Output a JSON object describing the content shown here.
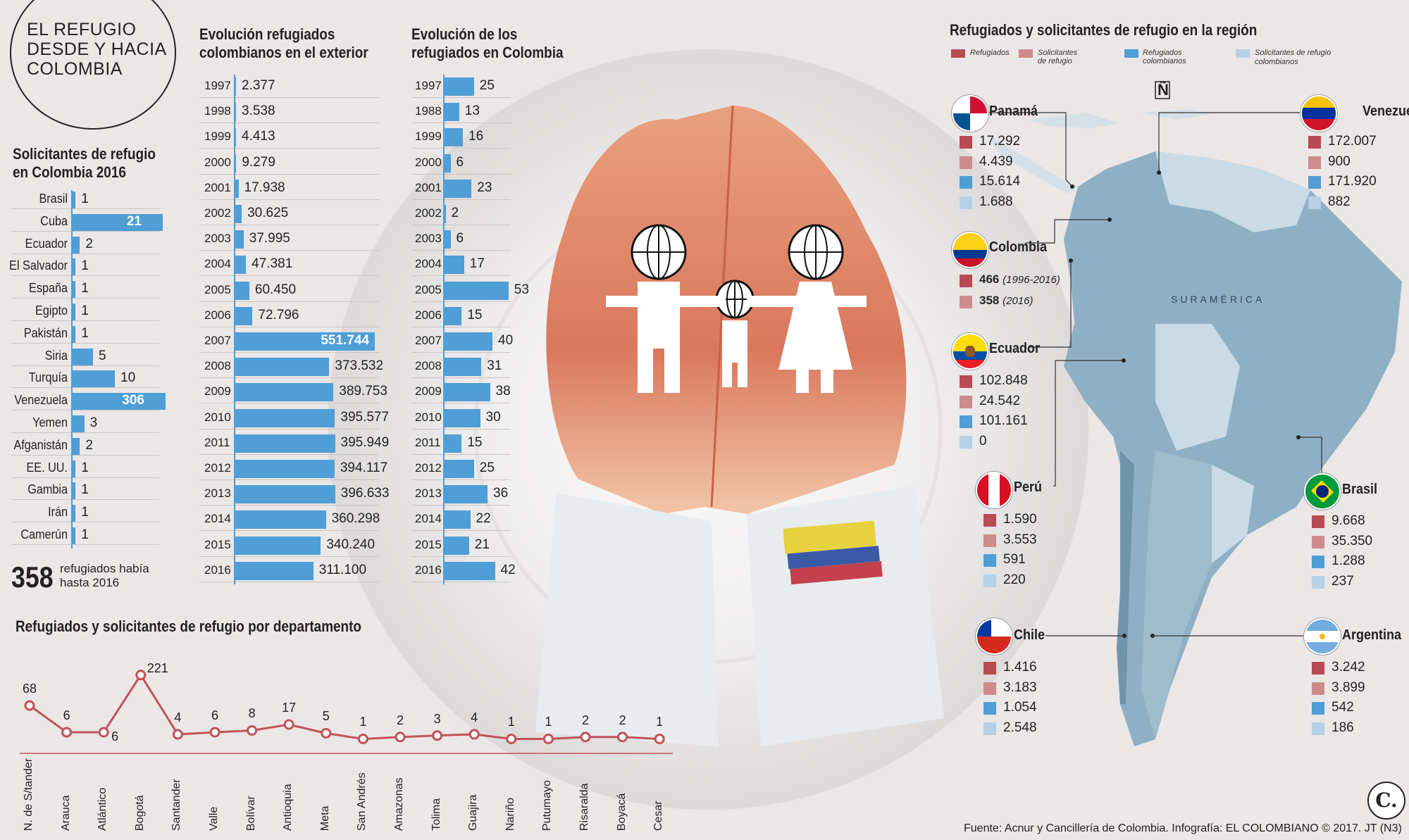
{
  "title_lines": [
    "EL REFUGIO",
    "DESDE Y HACIA",
    "COLOMBIA"
  ],
  "colors": {
    "blue": "#4f9ed6",
    "refugiados": "#b84a55",
    "solicitantes": "#cf8a8c",
    "ref_col": "#4f9ed6",
    "sol_col": "#b7d0e6",
    "line": "#c2525a",
    "map": "#8fb0c4",
    "map_light": "#c9dbe6"
  },
  "solicitantes": {
    "title_lines": [
      "Solicitantes de refugio",
      "en Colombia 2016"
    ],
    "items": [
      {
        "label": "Brasil",
        "value": "1"
      },
      {
        "label": "Cuba",
        "value": "21"
      },
      {
        "label": "Ecuador",
        "value": "2"
      },
      {
        "label": "El Salvador",
        "value": "1"
      },
      {
        "label": "España",
        "value": "1"
      },
      {
        "label": "Egipto",
        "value": "1"
      },
      {
        "label": "Pakistán",
        "value": "1"
      },
      {
        "label": "Siria",
        "value": "5"
      },
      {
        "label": "Turquía",
        "value": "10"
      },
      {
        "label": "Venezuela",
        "value": "306"
      },
      {
        "label": "Yemen",
        "value": "3"
      },
      {
        "label": "Afganistán",
        "value": "2"
      },
      {
        "label": "EE. UU.",
        "value": "1"
      },
      {
        "label": "Gambia",
        "value": "1"
      },
      {
        "label": "Irán",
        "value": "1"
      },
      {
        "label": "Camerún",
        "value": "1"
      }
    ],
    "total_number": "358",
    "total_text_lines": [
      "refugiados había",
      "hasta 2016"
    ]
  },
  "exterior": {
    "title_lines": [
      "Evolución refugiados",
      "colombianos en el exterior"
    ],
    "items": [
      {
        "year": "1997",
        "label": "2.377",
        "v": 2377
      },
      {
        "year": "1998",
        "label": "3.538",
        "v": 3538
      },
      {
        "year": "1999",
        "label": "4.413",
        "v": 4413
      },
      {
        "year": "2000",
        "label": "9.279",
        "v": 9279
      },
      {
        "year": "2001",
        "label": "17.938",
        "v": 17938
      },
      {
        "year": "2002",
        "label": "30.625",
        "v": 30625
      },
      {
        "year": "2003",
        "label": "37.995",
        "v": 37995
      },
      {
        "year": "2004",
        "label": "47.381",
        "v": 47381
      },
      {
        "year": "2005",
        "label": "60.450",
        "v": 60450
      },
      {
        "year": "2006",
        "label": "72.796",
        "v": 72796
      },
      {
        "year": "2007",
        "label": "551.744",
        "v": 551744
      },
      {
        "year": "2008",
        "label": "373.532",
        "v": 373532
      },
      {
        "year": "2009",
        "label": "389.753",
        "v": 389753
      },
      {
        "year": "2010",
        "label": "395.577",
        "v": 395577
      },
      {
        "year": "2011",
        "label": "395.949",
        "v": 395949
      },
      {
        "year": "2012",
        "label": "394.117",
        "v": 394117
      },
      {
        "year": "2013",
        "label": "396.633",
        "v": 396633
      },
      {
        "year": "2014",
        "label": "360.298",
        "v": 360298
      },
      {
        "year": "2015",
        "label": "340.240",
        "v": 340240
      },
      {
        "year": "2016",
        "label": "311.100",
        "v": 311100
      }
    ]
  },
  "colombia": {
    "title_lines": [
      "Evolución de los",
      "refugiados en Colombia"
    ],
    "items": [
      {
        "year": "1997",
        "label": "25",
        "v": 25
      },
      {
        "year": "1988",
        "label": "13",
        "v": 13
      },
      {
        "year": "1999",
        "label": "16",
        "v": 16
      },
      {
        "year": "2000",
        "label": "6",
        "v": 6
      },
      {
        "year": "2001",
        "label": "23",
        "v": 23
      },
      {
        "year": "2002",
        "label": "2",
        "v": 2
      },
      {
        "year": "2003",
        "label": "6",
        "v": 6
      },
      {
        "year": "2004",
        "label": "17",
        "v": 17
      },
      {
        "year": "2005",
        "label": "53",
        "v": 53
      },
      {
        "year": "2006",
        "label": "15",
        "v": 15
      },
      {
        "year": "2007",
        "label": "40",
        "v": 40
      },
      {
        "year": "2008",
        "label": "31",
        "v": 31
      },
      {
        "year": "2009",
        "label": "38",
        "v": 38
      },
      {
        "year": "2010",
        "label": "30",
        "v": 30
      },
      {
        "year": "2011",
        "label": "15",
        "v": 15
      },
      {
        "year": "2012",
        "label": "25",
        "v": 25
      },
      {
        "year": "2013",
        "label": "36",
        "v": 36
      },
      {
        "year": "2014",
        "label": "22",
        "v": 22
      },
      {
        "year": "2015",
        "label": "21",
        "v": 21
      },
      {
        "year": "2016",
        "label": "42",
        "v": 42
      }
    ]
  },
  "departamentos": {
    "title": "Refugiados y solicitantes de refugio por departamento",
    "items": [
      {
        "name": "N. de S/tander",
        "value": "68"
      },
      {
        "name": "Arauca",
        "value": "6"
      },
      {
        "name": "Atlántico",
        "value": "6"
      },
      {
        "name": "Bogotá",
        "value": "221"
      },
      {
        "name": "Santander",
        "value": "4"
      },
      {
        "name": "Valle",
        "value": "6"
      },
      {
        "name": "Bolívar",
        "value": "8"
      },
      {
        "name": "Antioquia",
        "value": "17"
      },
      {
        "name": "Meta",
        "value": "5"
      },
      {
        "name": "San Andrés",
        "value": "1"
      },
      {
        "name": "Amazonas",
        "value": "2"
      },
      {
        "name": "Tolima",
        "value": "3"
      },
      {
        "name": "Guajira",
        "value": "4"
      },
      {
        "name": "Nariño",
        "value": "1"
      },
      {
        "name": "Putumayo",
        "value": "1"
      },
      {
        "name": "Risaralda",
        "value": "2"
      },
      {
        "name": "Boyacá",
        "value": "2"
      },
      {
        "name": "Cesar",
        "value": "1"
      }
    ]
  },
  "region": {
    "title": "Refugiados y solicitantes de refugio en la región",
    "legend": [
      {
        "label": "Refugiados"
      },
      {
        "label": "Solicitantes de refugio"
      },
      {
        "label": "Refugiados colombianos"
      },
      {
        "label": "Solicitantes de refugio colombianos"
      }
    ],
    "continent_label": "SURAMÉRICA",
    "north": "Ñ",
    "countries": {
      "panama": {
        "name": "Panamá",
        "values": [
          "17.292",
          "4.439",
          "15.614",
          "1.688"
        ]
      },
      "venezuela": {
        "name": "Venezuela",
        "values": [
          "172.007",
          "900",
          "171.920",
          "882"
        ]
      },
      "colombia": {
        "name": "Colombia",
        "v1": "466",
        "n1": "(1996-2016)",
        "v2": "358",
        "n2": "(2016)"
      },
      "ecuador": {
        "name": "Ecuador",
        "values": [
          "102.848",
          "24.542",
          "101.161",
          "0"
        ]
      },
      "peru": {
        "name": "Perú",
        "values": [
          "1.590",
          "3.553",
          "591",
          "220"
        ]
      },
      "brasil": {
        "name": "Brasil",
        "values": [
          "9.668",
          "35.350",
          "1.288",
          "237"
        ]
      },
      "chile": {
        "name": "Chile",
        "values": [
          "1.416",
          "3.183",
          "1.054",
          "2.548"
        ]
      },
      "argentina": {
        "name": "Argentina",
        "values": [
          "3.242",
          "3.899",
          "542",
          "186"
        ]
      }
    }
  },
  "source": "Fuente: Acnur y Cancillería de Colombia. Infografía: EL COLOMBIANO © 2017. JT (N3)",
  "logo": "C."
}
